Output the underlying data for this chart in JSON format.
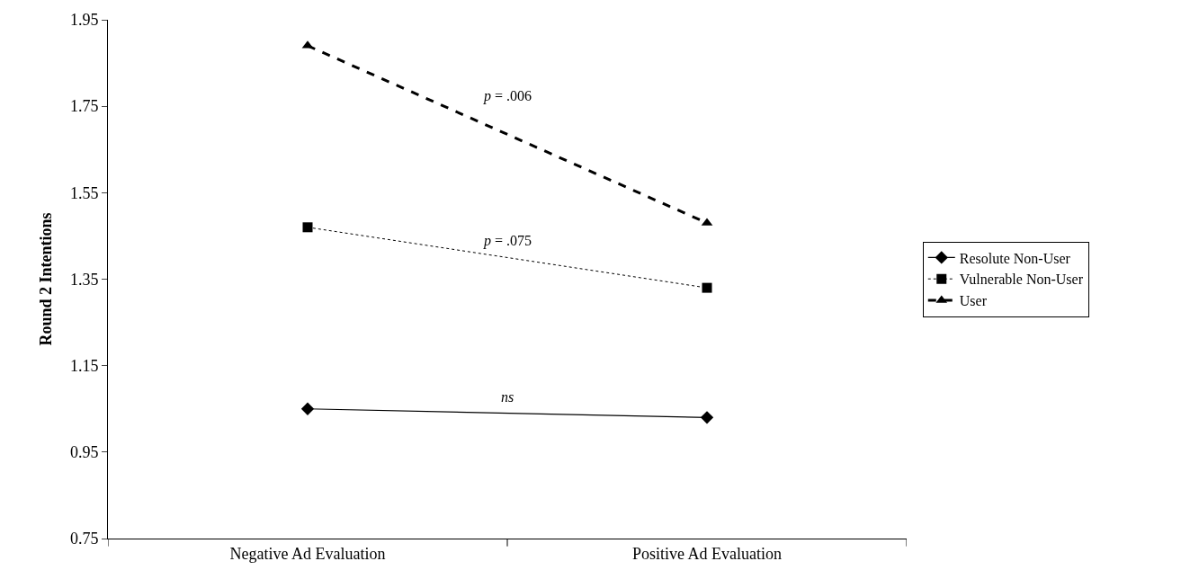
{
  "chart_data": {
    "type": "line",
    "ylabel": "Round 2 Intentions",
    "categories": [
      "Negative Ad Evaluation",
      "Positive Ad Evaluation"
    ],
    "series": [
      {
        "name": "Resolute Non-User",
        "color": "#000000",
        "values": [
          1.05,
          1.03
        ],
        "marker": "diamond",
        "line_style": "solid"
      },
      {
        "name": "Vulnerable Non-User",
        "color": "#000000",
        "values": [
          1.47,
          1.33
        ],
        "marker": "square",
        "line_style": "dotted"
      },
      {
        "name": "User",
        "color": "#000000",
        "values": [
          1.89,
          1.48
        ],
        "marker": "triangle",
        "line_style": "dashed"
      }
    ],
    "ylim": [
      0.75,
      1.95
    ],
    "yticks": [
      {
        "value": 0.75,
        "label": "0.75"
      },
      {
        "value": 0.95,
        "label": "0.95"
      },
      {
        "value": 1.15,
        "label": "1.15"
      },
      {
        "value": 1.35,
        "label": "1.35"
      },
      {
        "value": 1.55,
        "label": "1.55"
      },
      {
        "value": 1.75,
        "label": "1.75"
      },
      {
        "value": 1.95,
        "label": "1.95"
      }
    ],
    "annotations": [
      "ns",
      "p = .075",
      "p = .006"
    ],
    "legend": "right"
  }
}
